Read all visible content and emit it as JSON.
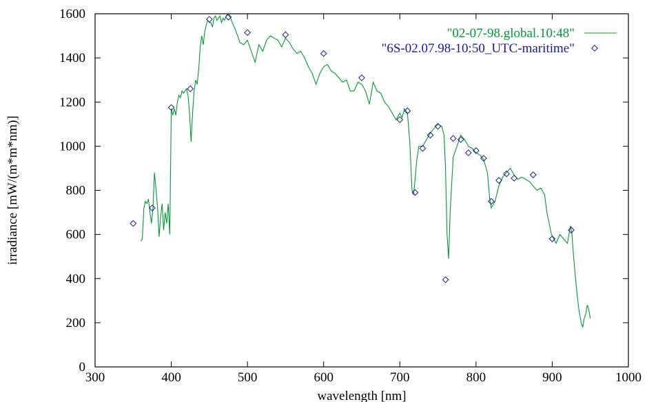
{
  "chart_data": {
    "type": "line",
    "title": "",
    "xlabel": "wavelength [nm]",
    "ylabel": "irradiance [mW/(m*m*nm)]",
    "xlim": [
      300,
      1000
    ],
    "ylim": [
      0,
      1600
    ],
    "xticks": [
      300,
      400,
      500,
      600,
      700,
      800,
      900,
      1000
    ],
    "yticks": [
      0,
      200,
      400,
      600,
      800,
      1000,
      1200,
      1400,
      1600
    ],
    "grid": false,
    "legend_position": "top-right",
    "series": [
      {
        "name": "\"02-07-98.global.10:48\"",
        "kind": "line",
        "color": "#009933",
        "x": [
          360,
          362,
          364,
          366,
          368,
          370,
          372,
          374,
          376,
          378,
          380,
          382,
          384,
          386,
          388,
          390,
          392,
          394,
          396,
          398,
          400,
          402,
          404,
          406,
          408,
          410,
          412,
          414,
          416,
          418,
          420,
          422,
          424,
          426,
          428,
          430,
          432,
          434,
          436,
          438,
          440,
          442,
          444,
          446,
          448,
          450,
          452,
          454,
          456,
          458,
          460,
          462,
          464,
          466,
          468,
          470,
          472,
          474,
          476,
          478,
          480,
          485,
          490,
          495,
          500,
          505,
          510,
          515,
          520,
          525,
          530,
          535,
          540,
          545,
          550,
          555,
          560,
          565,
          570,
          575,
          580,
          585,
          590,
          595,
          600,
          605,
          610,
          615,
          620,
          625,
          630,
          635,
          640,
          645,
          650,
          655,
          660,
          665,
          670,
          675,
          680,
          685,
          690,
          695,
          700,
          703,
          706,
          710,
          713,
          716,
          718,
          720,
          722,
          725,
          730,
          735,
          740,
          745,
          750,
          755,
          758,
          760,
          762,
          764,
          766,
          770,
          775,
          780,
          785,
          790,
          795,
          800,
          805,
          810,
          815,
          818,
          820,
          825,
          830,
          835,
          840,
          845,
          850,
          855,
          860,
          865,
          870,
          875,
          880,
          885,
          890,
          893,
          896,
          899,
          902,
          905,
          910,
          915,
          920,
          924,
          926,
          928,
          932,
          935,
          938,
          940,
          942,
          944,
          946,
          948,
          950
        ],
        "y": [
          570,
          580,
          720,
          750,
          740,
          760,
          700,
          650,
          720,
          880,
          800,
          720,
          590,
          680,
          740,
          620,
          700,
          650,
          740,
          600,
          1170,
          1140,
          1170,
          1140,
          1200,
          1230,
          1220,
          1250,
          1240,
          1250,
          1260,
          1230,
          1150,
          1020,
          1150,
          1250,
          1300,
          1280,
          1350,
          1450,
          1500,
          1460,
          1520,
          1550,
          1570,
          1560,
          1560,
          1540,
          1580,
          1590,
          1570,
          1580,
          1590,
          1560,
          1580,
          1570,
          1590,
          1600,
          1590,
          1580,
          1560,
          1520,
          1470,
          1460,
          1480,
          1430,
          1380,
          1460,
          1430,
          1480,
          1500,
          1490,
          1480,
          1450,
          1490,
          1470,
          1440,
          1420,
          1430,
          1400,
          1360,
          1330,
          1280,
          1330,
          1360,
          1370,
          1340,
          1330,
          1310,
          1290,
          1300,
          1250,
          1250,
          1290,
          1280,
          1250,
          1190,
          1290,
          1250,
          1240,
          1200,
          1180,
          1150,
          1120,
          1150,
          1130,
          1170,
          1150,
          1020,
          800,
          780,
          850,
          930,
          1000,
          1000,
          1030,
          1060,
          1080,
          1100,
          1090,
          1050,
          900,
          600,
          490,
          700,
          950,
          1000,
          1050,
          1030,
          1000,
          990,
          970,
          960,
          940,
          880,
          760,
          720,
          750,
          820,
          860,
          880,
          900,
          870,
          850,
          860,
          850,
          840,
          820,
          800,
          810,
          780,
          700,
          650,
          600,
          580,
          560,
          600,
          580,
          560,
          640,
          600,
          500,
          350,
          260,
          200,
          180,
          220,
          240,
          280,
          260,
          220
        ]
      },
      {
        "name": "\"6S-02.07.98-10:50_UTC-maritime\"",
        "kind": "points",
        "color": "#1a1a99",
        "x": [
          350,
          375,
          400,
          425,
          450,
          475,
          500,
          550,
          600,
          650,
          700,
          710,
          720,
          730,
          740,
          750,
          760,
          770,
          780,
          790,
          800,
          810,
          820,
          830,
          840,
          850,
          875,
          900,
          925
        ],
        "y": [
          650,
          720,
          1175,
          1260,
          1575,
          1585,
          1515,
          1505,
          1420,
          1310,
          1120,
          1160,
          790,
          990,
          1050,
          1090,
          395,
          1035,
          1030,
          970,
          980,
          945,
          750,
          845,
          875,
          855,
          870,
          580,
          620
        ]
      }
    ]
  }
}
